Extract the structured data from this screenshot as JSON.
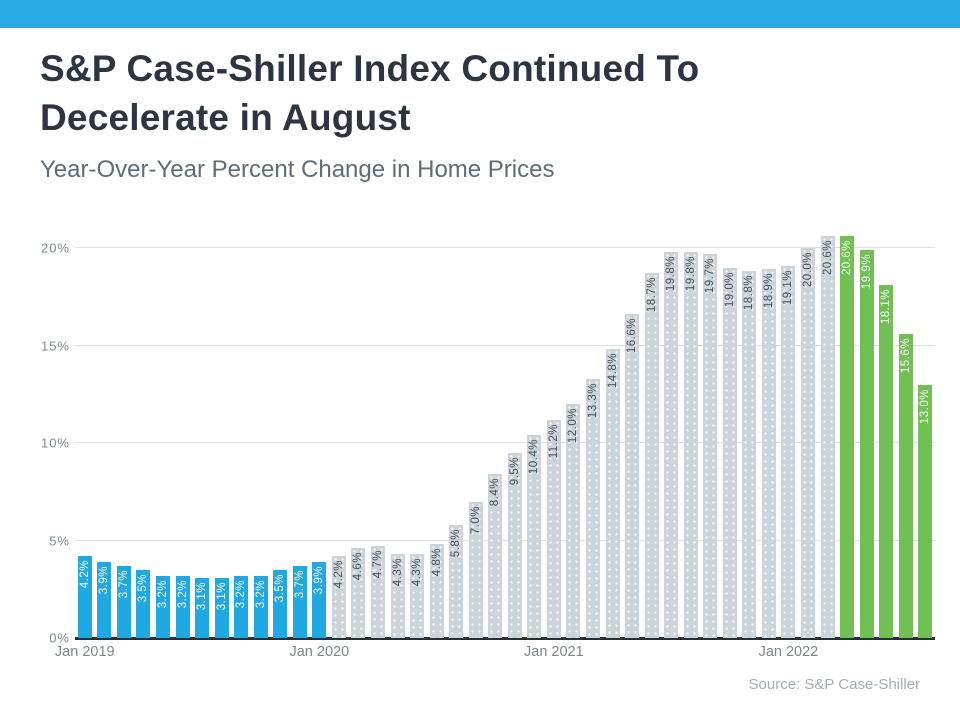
{
  "header": {
    "title_line1": "S&P Case-Shiller Index Continued To",
    "title_line2": "Decelerate in August",
    "subtitle": "Year-Over-Year Percent Change in Home Prices"
  },
  "colors": {
    "accent_top_bar": "#29ABE2",
    "bar_blue": "#1FA8E1",
    "bar_gray": "#CDD4D9",
    "bar_green": "#71C054",
    "title_text": "#2C3642",
    "axis_text": "#7D8790"
  },
  "chart_data": {
    "type": "bar",
    "title": "S&P Case-Shiller Index Continued To Decelerate in August",
    "subtitle": "Year-Over-Year Percent Change in Home Prices",
    "xlabel": "",
    "ylabel": "",
    "ylim": [
      0,
      21
    ],
    "grid": true,
    "yticks": [
      {
        "value": 0,
        "label": "0%"
      },
      {
        "value": 5,
        "label": "5%"
      },
      {
        "value": 10,
        "label": "10%"
      },
      {
        "value": 15,
        "label": "15%"
      },
      {
        "value": 20,
        "label": "20%"
      }
    ],
    "xticks": [
      {
        "index": 0,
        "label": "Jan 2019"
      },
      {
        "index": 12,
        "label": "Jan 2020"
      },
      {
        "index": 24,
        "label": "Jan 2021"
      },
      {
        "index": 36,
        "label": "Jan 2022"
      }
    ],
    "source": "Source: S&P Case-Shiller",
    "bars": [
      {
        "month": "Jan 2019",
        "value": 4.2,
        "label": "4.2%",
        "color": "blue"
      },
      {
        "month": "Feb 2019",
        "value": 3.9,
        "label": "3.9%",
        "color": "blue"
      },
      {
        "month": "Mar 2019",
        "value": 3.7,
        "label": "3.7%",
        "color": "blue"
      },
      {
        "month": "Apr 2019",
        "value": 3.5,
        "label": "3.5%",
        "color": "blue"
      },
      {
        "month": "May 2019",
        "value": 3.2,
        "label": "3.2%",
        "color": "blue"
      },
      {
        "month": "Jun 2019",
        "value": 3.2,
        "label": "3.2%",
        "color": "blue"
      },
      {
        "month": "Jul 2019",
        "value": 3.1,
        "label": "3.1%",
        "color": "blue"
      },
      {
        "month": "Aug 2019",
        "value": 3.1,
        "label": "3.1%",
        "color": "blue"
      },
      {
        "month": "Sep 2019",
        "value": 3.2,
        "label": "3.2%",
        "color": "blue"
      },
      {
        "month": "Oct 2019",
        "value": 3.2,
        "label": "3.2%",
        "color": "blue"
      },
      {
        "month": "Nov 2019",
        "value": 3.5,
        "label": "3.5%",
        "color": "blue"
      },
      {
        "month": "Dec 2019",
        "value": 3.7,
        "label": "3.7%",
        "color": "blue"
      },
      {
        "month": "Jan 2020",
        "value": 3.9,
        "label": "3.9%",
        "color": "blue"
      },
      {
        "month": "Feb 2020",
        "value": 4.2,
        "label": "4.2%",
        "color": "gray"
      },
      {
        "month": "Mar 2020",
        "value": 4.6,
        "label": "4.6%",
        "color": "gray"
      },
      {
        "month": "Apr 2020",
        "value": 4.7,
        "label": "4.7%",
        "color": "gray"
      },
      {
        "month": "May 2020",
        "value": 4.3,
        "label": "4.3%",
        "color": "gray"
      },
      {
        "month": "Jun 2020",
        "value": 4.3,
        "label": "4.3%",
        "color": "gray"
      },
      {
        "month": "Jul 2020",
        "value": 4.8,
        "label": "4.8%",
        "color": "gray"
      },
      {
        "month": "Aug 2020",
        "value": 5.8,
        "label": "5.8%",
        "color": "gray"
      },
      {
        "month": "Sep 2020",
        "value": 7.0,
        "label": "7.0%",
        "color": "gray"
      },
      {
        "month": "Oct 2020",
        "value": 8.4,
        "label": "8.4%",
        "color": "gray"
      },
      {
        "month": "Nov 2020",
        "value": 9.5,
        "label": "9.5%",
        "color": "gray"
      },
      {
        "month": "Dec 2020",
        "value": 10.4,
        "label": "10.4%",
        "color": "gray"
      },
      {
        "month": "Jan 2021",
        "value": 11.2,
        "label": "11.2%",
        "color": "gray"
      },
      {
        "month": "Feb 2021",
        "value": 12.0,
        "label": "12.0%",
        "color": "gray"
      },
      {
        "month": "Mar 2021",
        "value": 13.3,
        "label": "13.3%",
        "color": "gray"
      },
      {
        "month": "Apr 2021",
        "value": 14.8,
        "label": "14.8%",
        "color": "gray"
      },
      {
        "month": "May 2021",
        "value": 16.6,
        "label": "16.6%",
        "color": "gray"
      },
      {
        "month": "Jun 2021",
        "value": 18.7,
        "label": "18.7%",
        "color": "gray"
      },
      {
        "month": "Jul 2021",
        "value": 19.8,
        "label": "19.8%",
        "color": "gray"
      },
      {
        "month": "Aug 2021",
        "value": 19.8,
        "label": "19.8%",
        "color": "gray"
      },
      {
        "month": "Sep 2021",
        "value": 19.7,
        "label": "19.7%",
        "color": "gray"
      },
      {
        "month": "Oct 2021",
        "value": 19.0,
        "label": "19.0%",
        "color": "gray"
      },
      {
        "month": "Nov 2021",
        "value": 18.8,
        "label": "18.8%",
        "color": "gray"
      },
      {
        "month": "Dec 2021",
        "value": 18.9,
        "label": "18.9%",
        "color": "gray"
      },
      {
        "month": "Jan 2022",
        "value": 19.1,
        "label": "19.1%",
        "color": "gray"
      },
      {
        "month": "Feb 2022",
        "value": 20.0,
        "label": "20.0%",
        "color": "gray"
      },
      {
        "month": "Mar 2022",
        "value": 20.6,
        "label": "20.6%",
        "color": "gray"
      },
      {
        "month": "Apr 2022",
        "value": 20.6,
        "label": "20.6%",
        "color": "green"
      },
      {
        "month": "May 2022",
        "value": 19.9,
        "label": "19.9%",
        "color": "green"
      },
      {
        "month": "Jun 2022",
        "value": 18.1,
        "label": "18.1%",
        "color": "green"
      },
      {
        "month": "Jul 2022",
        "value": 15.6,
        "label": "15.6%",
        "color": "green"
      },
      {
        "month": "Aug 2022",
        "value": 13.0,
        "label": "13.0%",
        "color": "green"
      }
    ]
  }
}
